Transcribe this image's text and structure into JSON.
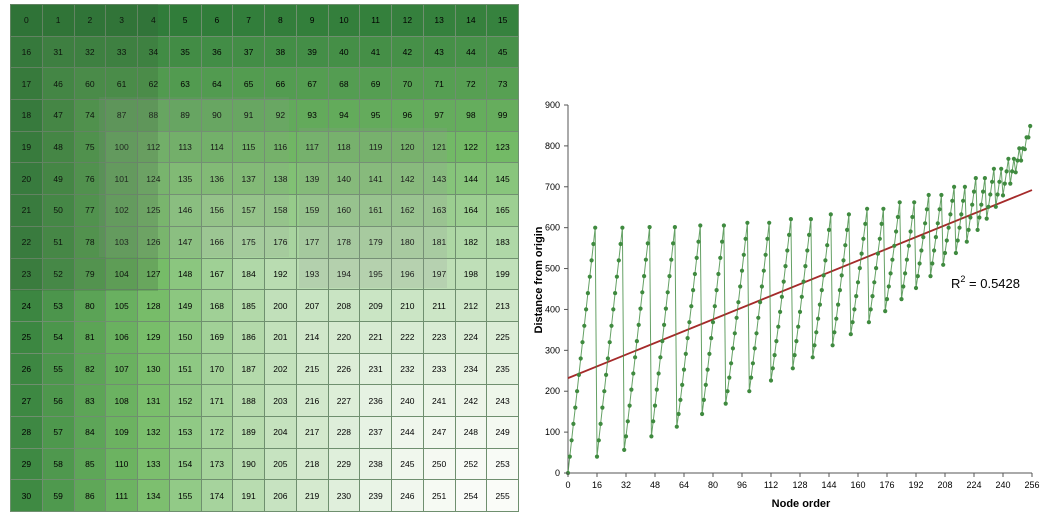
{
  "grid": {
    "rows": [
      [
        0,
        1,
        2,
        3,
        4,
        5,
        6,
        7,
        8,
        9,
        10,
        11,
        12,
        13,
        14,
        15
      ],
      [
        16,
        31,
        32,
        33,
        34,
        35,
        36,
        37,
        38,
        39,
        40,
        41,
        42,
        43,
        44,
        45
      ],
      [
        17,
        46,
        60,
        61,
        62,
        63,
        64,
        65,
        66,
        67,
        68,
        69,
        70,
        71,
        72,
        73
      ],
      [
        18,
        47,
        74,
        87,
        88,
        89,
        90,
        91,
        92,
        93,
        94,
        95,
        96,
        97,
        98,
        99
      ],
      [
        19,
        48,
        75,
        100,
        112,
        113,
        114,
        115,
        116,
        117,
        118,
        119,
        120,
        121,
        122,
        123
      ],
      [
        20,
        49,
        76,
        101,
        124,
        135,
        136,
        137,
        138,
        139,
        140,
        141,
        142,
        143,
        144,
        145
      ],
      [
        21,
        50,
        77,
        102,
        125,
        146,
        156,
        157,
        158,
        159,
        160,
        161,
        162,
        163,
        164,
        165
      ],
      [
        22,
        51,
        78,
        103,
        126,
        147,
        166,
        175,
        176,
        177,
        178,
        179,
        180,
        181,
        182,
        183
      ],
      [
        23,
        52,
        79,
        104,
        127,
        148,
        167,
        184,
        192,
        193,
        194,
        195,
        196,
        197,
        198,
        199
      ],
      [
        24,
        53,
        80,
        105,
        128,
        149,
        168,
        185,
        200,
        207,
        208,
        209,
        210,
        211,
        212,
        213
      ],
      [
        25,
        54,
        81,
        106,
        129,
        150,
        169,
        186,
        201,
        214,
        220,
        221,
        222,
        223,
        224,
        225
      ],
      [
        26,
        55,
        82,
        107,
        130,
        151,
        170,
        187,
        202,
        215,
        226,
        231,
        232,
        233,
        234,
        235
      ],
      [
        27,
        56,
        83,
        108,
        131,
        152,
        171,
        188,
        203,
        216,
        227,
        236,
        240,
        241,
        242,
        243
      ],
      [
        28,
        57,
        84,
        109,
        132,
        153,
        172,
        189,
        204,
        217,
        228,
        237,
        244,
        247,
        248,
        249
      ],
      [
        29,
        58,
        85,
        110,
        133,
        154,
        173,
        190,
        205,
        218,
        229,
        238,
        245,
        250,
        252,
        253
      ],
      [
        30,
        59,
        86,
        111,
        134,
        155,
        174,
        191,
        206,
        219,
        230,
        239,
        246,
        251,
        254,
        255
      ]
    ]
  },
  "chart_data": {
    "type": "scatter",
    "xlabel": "Node order",
    "ylabel": "Distance from origin",
    "xlim": [
      0,
      256
    ],
    "ylim": [
      0,
      900
    ],
    "xticks": [
      0,
      16,
      32,
      48,
      64,
      80,
      96,
      112,
      128,
      144,
      160,
      176,
      192,
      208,
      224,
      240,
      256
    ],
    "yticks": [
      0,
      100,
      200,
      300,
      400,
      500,
      600,
      700,
      800,
      900
    ],
    "trendline": {
      "type": "linear",
      "x": [
        0,
        256
      ],
      "y": [
        232,
        692
      ]
    },
    "annotation": {
      "base": "R",
      "sup": "2",
      "rest": " = 0.5428"
    },
    "grid": false,
    "colors": {
      "series": "#3f8a3f",
      "trendline": "#a52a2a"
    }
  }
}
